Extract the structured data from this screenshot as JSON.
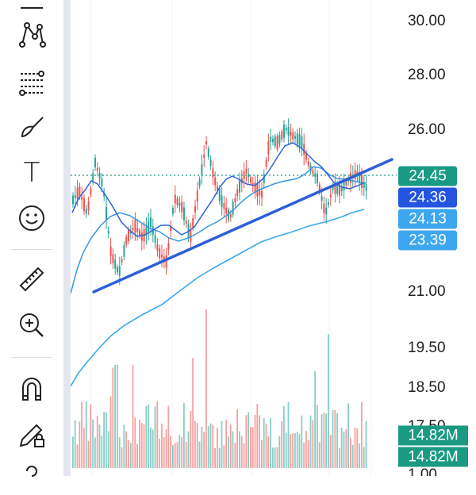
{
  "toolbar": {
    "tools": [
      {
        "icon": "trend-line-icon"
      },
      {
        "icon": "pattern-icon"
      },
      {
        "icon": "fib-retracement-icon"
      },
      {
        "icon": "brush-icon"
      },
      {
        "icon": "text-tool-icon",
        "glyph": "T"
      },
      {
        "icon": "emoji-icon"
      },
      {
        "icon": "ruler-icon"
      },
      {
        "icon": "zoom-in-icon"
      },
      {
        "icon": "magnet-icon"
      },
      {
        "icon": "lock-drawings-icon"
      },
      {
        "icon": "hide-drawings-icon"
      }
    ]
  },
  "price_axis": {
    "ticks": [
      "30.00",
      "28.00",
      "26.00",
      "21.00",
      "19.50",
      "18.50",
      "17.50",
      "1.00"
    ]
  },
  "badges": [
    {
      "label": "24.45",
      "color": "#1a9a83"
    },
    {
      "label": "24.36",
      "color": "#2455e0"
    },
    {
      "label": "24.13",
      "color": "#3ca7ee"
    },
    {
      "label": "23.39",
      "color": "#3ca7ee"
    }
  ],
  "volume_badges": [
    {
      "label": "14.82M",
      "color": "#1a9a83"
    },
    {
      "label": "14.82M",
      "color": "#1a9a83"
    }
  ],
  "colors": {
    "up": "#26a69a",
    "down": "#ef5350",
    "trendline": "#2c5fd8",
    "ma_fast": "#2c63d8",
    "ma_mid": "#3797e0",
    "ma_slow": "#3ca7ee",
    "last_price_line": "#1a9a83"
  },
  "chart_data": {
    "type": "candlestick",
    "instrument_last": 24.45,
    "moving_averages": [
      24.36,
      24.13,
      23.39
    ],
    "approx_price_range": [
      21.0,
      26.2
    ],
    "volume_last": "14.82M"
  }
}
